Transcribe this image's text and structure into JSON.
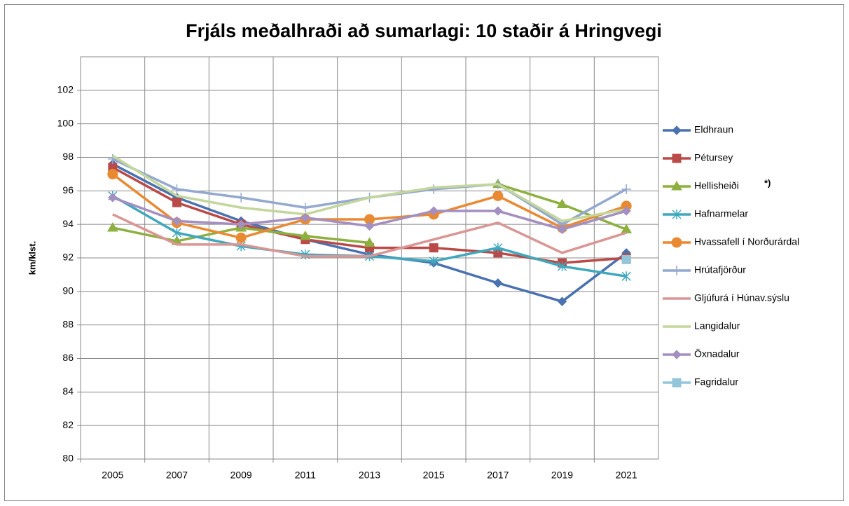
{
  "chart_data": {
    "type": "line",
    "title": "Frjáls meðalhraði að sumarlagi: 10 staðir á Hringvegi",
    "y_label": "km/klst.",
    "annotation": "*)",
    "categories": [
      "2005",
      "2007",
      "2009",
      "2011",
      "2013",
      "2015",
      "2017",
      "2019",
      "2021"
    ],
    "ylim": [
      80,
      104
    ],
    "yticks": [
      80,
      82,
      84,
      86,
      88,
      90,
      92,
      94,
      96,
      98,
      100,
      102
    ],
    "grid": true,
    "legend": "right",
    "series": [
      {
        "name": "Eldhraun",
        "color": "#4a71b0",
        "marker": "diamond",
        "values": [
          97.6,
          95.6,
          94.2,
          93.1,
          92.2,
          91.7,
          90.5,
          89.4,
          92.3
        ]
      },
      {
        "name": "Pétursey",
        "color": "#b94a48",
        "marker": "square",
        "values": [
          97.4,
          95.3,
          94.0,
          93.1,
          92.6,
          92.6,
          92.3,
          91.7,
          92.0
        ]
      },
      {
        "name": "Hellisheiði",
        "color": "#8db03f",
        "marker": "triangle",
        "values": [
          93.8,
          93.0,
          93.8,
          93.3,
          92.9,
          null,
          96.4,
          95.2,
          93.7
        ]
      },
      {
        "name": "Hafnarmelar",
        "color": "#3fa8bd",
        "marker": "asterisk",
        "values": [
          95.7,
          93.5,
          92.7,
          92.2,
          92.1,
          91.8,
          92.6,
          91.5,
          90.9
        ]
      },
      {
        "name": "Hvassafell í Norðurárdal",
        "color": "#e98a33",
        "marker": "circle",
        "values": [
          97.0,
          94.1,
          93.2,
          94.3,
          94.3,
          94.6,
          95.7,
          93.8,
          95.1
        ]
      },
      {
        "name": "Hrútafjörður",
        "color": "#93a9cf",
        "marker": "plus",
        "values": [
          97.9,
          96.1,
          95.6,
          95.0,
          95.6,
          96.1,
          96.4,
          94.0,
          96.1
        ]
      },
      {
        "name": "Gljúfurá í Húnav.sýslu",
        "color": "#d99694",
        "marker": null,
        "values": [
          94.6,
          92.8,
          92.8,
          92.1,
          92.1,
          93.1,
          94.1,
          92.3,
          93.5
        ]
      },
      {
        "name": "Langidalur",
        "color": "#c3d69b",
        "marker": null,
        "values": [
          98.1,
          95.7,
          95.0,
          94.6,
          95.6,
          96.2,
          96.4,
          94.2,
          94.9
        ]
      },
      {
        "name": "Öxnadalur",
        "color": "#a48fc1",
        "marker": "diamond",
        "values": [
          95.6,
          94.2,
          94.0,
          94.4,
          93.9,
          94.8,
          94.8,
          93.7,
          94.8
        ]
      },
      {
        "name": "Fagridalur",
        "color": "#93c6d8",
        "marker": "square",
        "values": [
          null,
          null,
          null,
          null,
          null,
          null,
          null,
          null,
          91.9
        ]
      }
    ]
  }
}
